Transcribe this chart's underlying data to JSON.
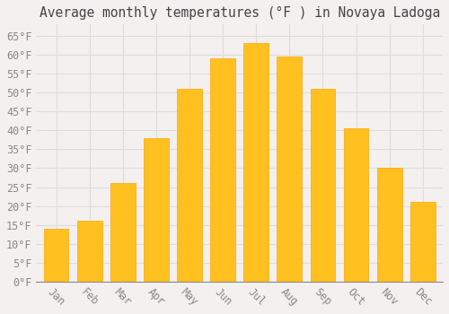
{
  "title": "Average monthly temperatures (°F ) in Novaya Ladoga",
  "months": [
    "Jan",
    "Feb",
    "Mar",
    "Apr",
    "May",
    "Jun",
    "Jul",
    "Aug",
    "Sep",
    "Oct",
    "Nov",
    "Dec"
  ],
  "values": [
    14,
    16,
    26,
    38,
    51,
    59,
    63,
    59.5,
    51,
    40.5,
    30,
    21
  ],
  "bar_color_main": "#FFC020",
  "bar_color_edge": "#FFA500",
  "background_color": "#F5F0F0",
  "grid_color": "#DDDDDD",
  "tick_label_color": "#888888",
  "title_color": "#444444",
  "ylim": [
    0,
    68
  ],
  "yticks": [
    0,
    5,
    10,
    15,
    20,
    25,
    30,
    35,
    40,
    45,
    50,
    55,
    60,
    65
  ],
  "title_fontsize": 10.5,
  "tick_fontsize": 8.5,
  "font_family": "monospace",
  "bar_width": 0.75
}
